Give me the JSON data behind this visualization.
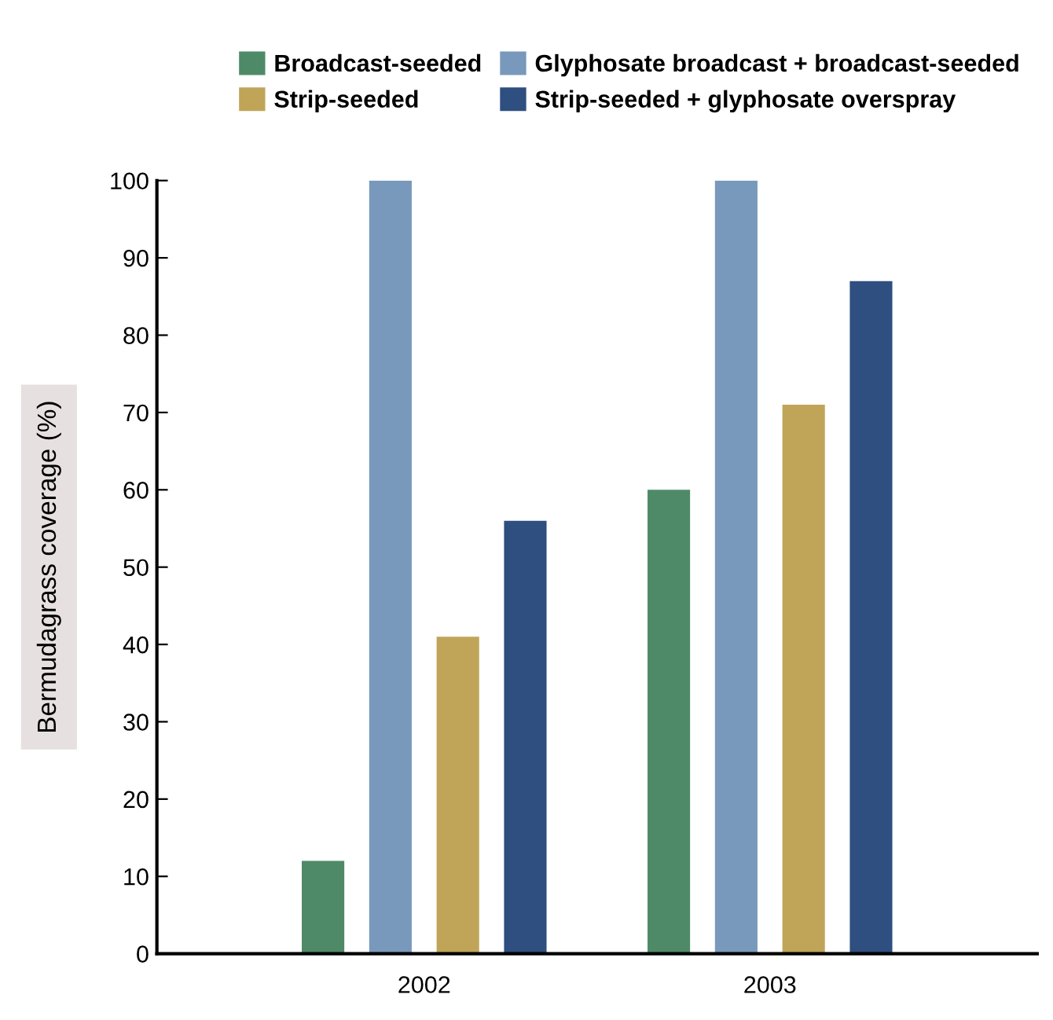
{
  "chart_data": {
    "type": "bar",
    "ylabel": "Bermudagrass coverage (%)",
    "categories": [
      "2002",
      "2003"
    ],
    "series": [
      {
        "name": "Broadcast-seeded",
        "color": "#4e8a68",
        "values": [
          12,
          60
        ]
      },
      {
        "name": "Glyphosate broadcast + broadcast-seeded",
        "color": "#7899bb",
        "values": [
          100,
          100
        ]
      },
      {
        "name": "Strip-seeded",
        "color": "#c0a458",
        "values": [
          41,
          71
        ]
      },
      {
        "name": "Strip-seeded + glyphosate overspray",
        "color": "#2e4f7f",
        "values": [
          56,
          87
        ]
      }
    ],
    "ylim": [
      0,
      100
    ],
    "yticks": [
      0,
      10,
      20,
      30,
      40,
      50,
      60,
      70,
      80,
      90,
      100
    ],
    "grid": false,
    "legend": "top"
  }
}
